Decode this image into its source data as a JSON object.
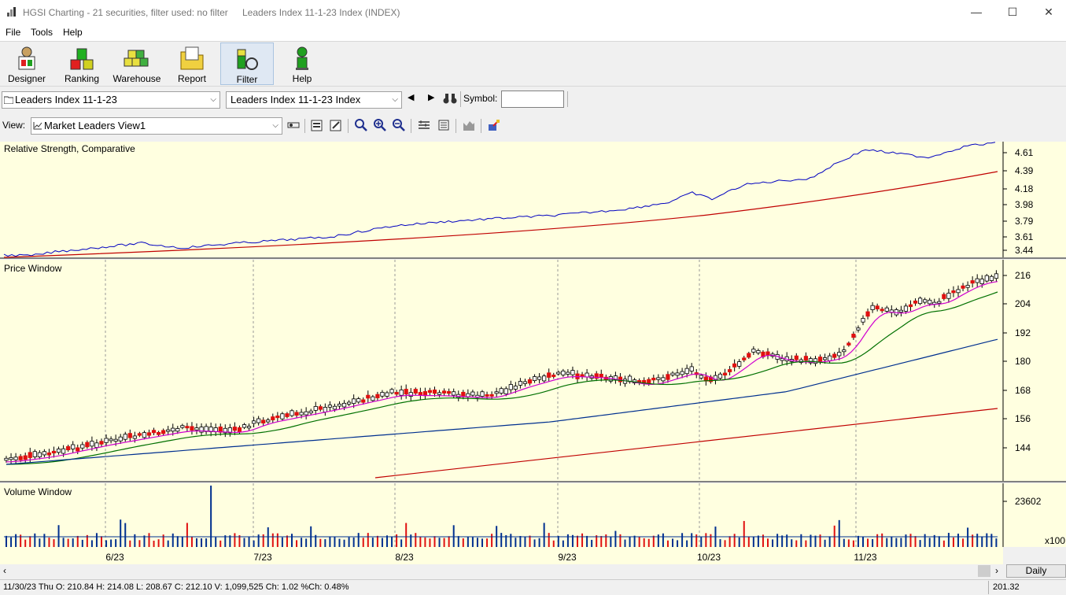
{
  "window": {
    "title": "HGSI Charting - 21 securities, filter used: no filter",
    "subtitle": "Leaders Index 11-1-23 Index (INDEX)",
    "minimize": "—",
    "maximize": "☐",
    "close": "✕"
  },
  "menu": [
    "File",
    "Tools",
    "Help"
  ],
  "toolbar": [
    {
      "label": "Designer",
      "icon": "designer-icon"
    },
    {
      "label": "Ranking",
      "icon": "ranking-icon"
    },
    {
      "label": "Warehouse",
      "icon": "warehouse-icon"
    },
    {
      "label": "Report",
      "icon": "report-icon"
    },
    {
      "label": "Filter",
      "icon": "filter-icon",
      "active": true
    },
    {
      "label": "Help",
      "icon": "help-icon"
    }
  ],
  "selectors": {
    "list": "Leaders Index 11-1-23",
    "security": "Leaders Index 11-1-23 Index",
    "symbol_label": "Symbol:",
    "symbol_value": ""
  },
  "view": {
    "label": "View:",
    "value": "Market Leaders View1"
  },
  "panels": {
    "rs": {
      "title": "Relative Strength, Comparative",
      "ticks": [
        "4.61",
        "4.39",
        "4.18",
        "3.98",
        "3.79",
        "3.61",
        "3.44"
      ]
    },
    "price": {
      "title": "Price Window",
      "ticks": [
        "216",
        "204",
        "192",
        "180",
        "168",
        "156",
        "144"
      ]
    },
    "volume": {
      "title": "Volume Window",
      "ticks": [
        "23602"
      ],
      "unit": "x100"
    }
  },
  "x_labels": [
    "6/23",
    "7/23",
    "8/23",
    "9/23",
    "10/23",
    "11/23"
  ],
  "period": "Daily",
  "status": {
    "info": "11/30/23 Thu O: 210.84 H: 214.08 L: 208.67 C: 212.10 V: 1,099,525 Ch: 1.02 %Ch: 0.48%",
    "last": "201.32"
  },
  "colors": {
    "panel_bg": "#ffffe0",
    "up": "#ffffff",
    "down": "#e01010",
    "rs_line": "#0000c0",
    "rs_avg": "#c00000",
    "ma_fast": "#d000d0",
    "ma_mid": "#007000",
    "ma_slow": "#00308f",
    "ma_long": "#c00000",
    "vol_up": "#00308f",
    "vol_down": "#e01010"
  }
}
